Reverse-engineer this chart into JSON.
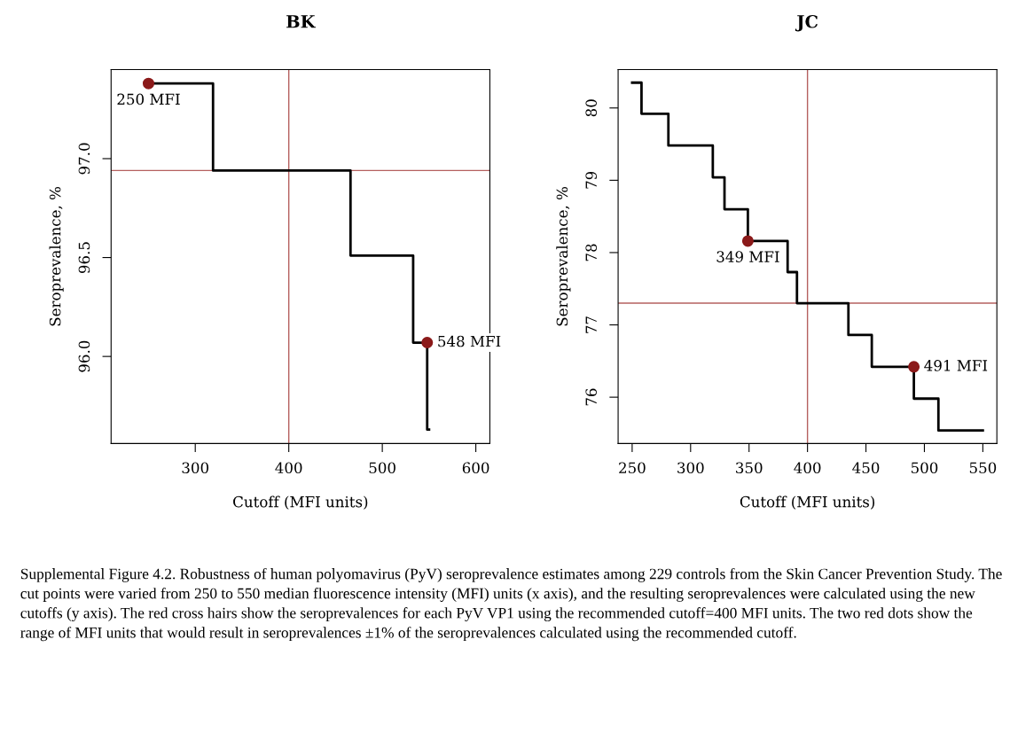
{
  "chart_data": [
    {
      "type": "step",
      "title": "BK",
      "xlabel": "Cutoff (MFI units)",
      "ylabel": "Seroprevalence, %",
      "xlim": [
        210,
        615
      ],
      "ylim": [
        95.56,
        97.45
      ],
      "xticks": [
        300,
        400,
        500,
        600
      ],
      "yticks": [
        {
          "value": 96.0,
          "label": "96.0"
        },
        {
          "value": 96.5,
          "label": "96.5"
        },
        {
          "value": 97.0,
          "label": "97.0"
        }
      ],
      "series": [
        {
          "color": "#000000",
          "x": [
            250,
            319,
            466,
            533,
            548,
            550
          ],
          "values": [
            97.38,
            96.94,
            96.51,
            96.07,
            95.63,
            95.63
          ]
        },
        {
          "type": "scatter",
          "color": "#8b1a1a",
          "marker": "circle",
          "x": [
            250,
            548
          ],
          "values": [
            97.38,
            96.07
          ]
        }
      ],
      "ref_lines": [
        {
          "axis": "x",
          "value": 400,
          "color": "#b5605f"
        },
        {
          "axis": "y",
          "value": 96.94,
          "color": "#b5605f"
        }
      ],
      "annotations": [
        {
          "text": "250 MFI",
          "x": 250,
          "y": 97.38
        },
        {
          "text": "548 MFI",
          "x": 548,
          "y": 96.07
        },
        "Supplemental Figure 4.2. Robustness of human polyomavirus (PyV) seroprevalence estimates among 229 controls from the Skin Cancer Prevention Study. The cut points were varied from 250 to 550 median fluorescence intensity (MFI) units (x axis), and the resulting seroprevalences were calculated using the new cutoffs (y axis). The red cross hairs show the seroprevalences for each PyV VP1 using the recommended cutoff=400 MFI units. The two red dots show the range of MFI units that would result in seroprevalences ±1% of the seroprevalences calculated using the recommended cutoff."
      ]
    },
    {
      "type": "step",
      "title": "JC",
      "xlabel": "Cutoff (MFI units)",
      "ylabel": "Seroprevalence, %",
      "xlim": [
        238,
        562
      ],
      "ylim": [
        75.36,
        80.53
      ],
      "xticks": [
        250,
        300,
        350,
        400,
        450,
        500,
        550
      ],
      "yticks": [
        76,
        77,
        78,
        79,
        80
      ],
      "series": [
        {
          "color": "#000000",
          "x": [
            250,
            258,
            281,
            319,
            329,
            349,
            383,
            391,
            435,
            455,
            491,
            512,
            550
          ],
          "values": [
            80.35,
            79.92,
            79.48,
            79.04,
            78.6,
            78.16,
            77.73,
            77.3,
            76.86,
            76.42,
            75.98,
            75.54,
            75.54
          ]
        },
        {
          "type": "scatter",
          "color": "#8b1a1a",
          "marker": "circle",
          "x": [
            349,
            491
          ],
          "values": [
            78.16,
            76.42
          ]
        }
      ],
      "ref_lines": [
        {
          "axis": "x",
          "value": 400,
          "color": "#b5605f"
        },
        {
          "axis": "y",
          "value": 77.3,
          "color": "#b5605f"
        }
      ],
      "annotations": [
        {
          "text": "349 MFI",
          "x": 349,
          "y": 78.16
        },
        {
          "text": "491 MFI",
          "x": 491,
          "y": 76.42
        }
      ]
    }
  ]
}
